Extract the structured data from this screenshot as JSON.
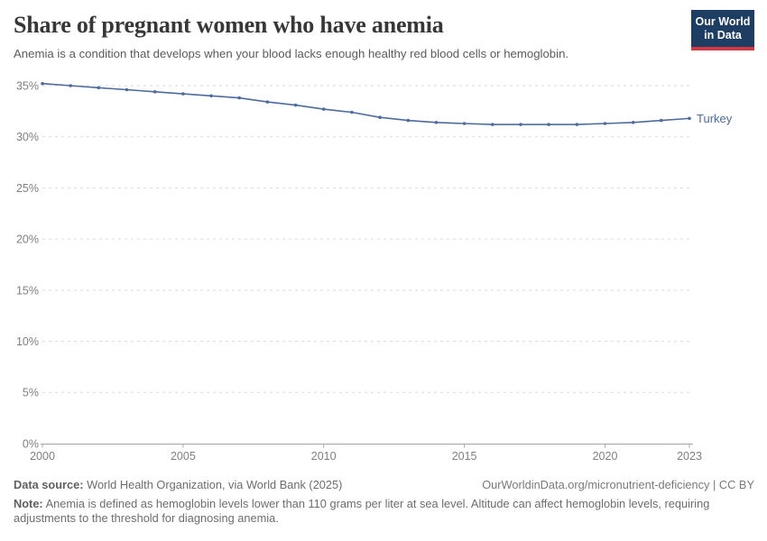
{
  "header": {
    "title": "Share of pregnant women who have anemia",
    "subtitle": "Anemia is a condition that develops when your blood lacks enough healthy red blood cells or hemoglobin.",
    "logo": {
      "line1": "Our World",
      "line2": "in Data"
    }
  },
  "chart_data": {
    "type": "line",
    "title": "Share of pregnant women who have anemia",
    "x": [
      2000,
      2001,
      2002,
      2003,
      2004,
      2005,
      2006,
      2007,
      2008,
      2009,
      2010,
      2011,
      2012,
      2013,
      2014,
      2015,
      2016,
      2017,
      2018,
      2019,
      2020,
      2021,
      2022,
      2023
    ],
    "series": [
      {
        "name": "Turkey",
        "values": [
          35.2,
          35.0,
          34.8,
          34.6,
          34.4,
          34.2,
          34.0,
          33.8,
          33.4,
          33.1,
          32.7,
          32.4,
          31.9,
          31.6,
          31.4,
          31.3,
          31.2,
          31.2,
          31.2,
          31.2,
          31.3,
          31.4,
          31.6,
          31.8
        ]
      }
    ],
    "xlim": [
      2000,
      2023
    ],
    "ylim": [
      0,
      35
    ],
    "x_ticks": [
      2000,
      2005,
      2010,
      2015,
      2020,
      2023
    ],
    "y_ticks": [
      0,
      5,
      10,
      15,
      20,
      25,
      30,
      35
    ],
    "y_tick_suffix": "%",
    "grid": "horizontal-dashed",
    "legend_position": "end-of-line-label",
    "end_label": "Turkey"
  },
  "colors": {
    "series": "#4d6b9f",
    "grid": "#dadada",
    "axis": "#a5a5a5",
    "tick_text": "#7f7f7f",
    "title_text": "#373737",
    "subtitle_text": "#5b5b5b",
    "footer_text": "#6d6d6d",
    "logo_bg": "#1d3d63",
    "logo_bar": "#cf3944"
  },
  "footer": {
    "source_label": "Data source:",
    "source_text": "World Health Organization, via World Bank (2025)",
    "link_text": "OurWorldinData.org/micronutrient-deficiency | CC BY",
    "note_label": "Note:",
    "note_text": "Anemia is defined as hemoglobin levels lower than 110 grams per liter at sea level. Altitude can affect hemoglobin levels, requiring adjustments to the threshold for diagnosing anemia."
  }
}
